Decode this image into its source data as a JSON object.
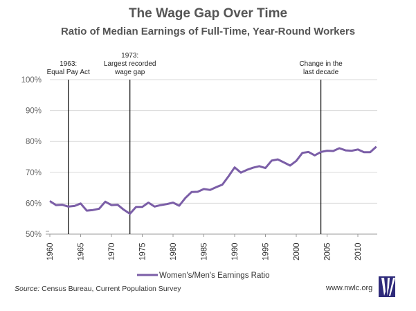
{
  "chart_data": {
    "type": "line",
    "title": "The Wage Gap Over Time",
    "subtitle": "Ratio of Median Earnings of Full-Time, Year-Round Workers",
    "xlabel": "",
    "ylabel": "",
    "xlim": [
      1960,
      2013
    ],
    "ylim": [
      50,
      100
    ],
    "grid": true,
    "y_ticks": [
      "50%",
      "60%",
      "70%",
      "80%",
      "90%",
      "100%"
    ],
    "y_tick_values": [
      50,
      60,
      70,
      80,
      90,
      100
    ],
    "x_ticks": [
      "1960",
      "1965",
      "1970",
      "1975",
      "1980",
      "1985",
      "1990",
      "1995",
      "2000",
      "2005",
      "2010"
    ],
    "x_tick_values": [
      1960,
      1965,
      1970,
      1975,
      1980,
      1985,
      1990,
      1995,
      2000,
      2005,
      2010
    ],
    "legend_placement": "bottom",
    "series": [
      {
        "name": "Women's/Men's Earnings Ratio",
        "color": "#7b5ea7",
        "x": [
          1960,
          1961,
          1962,
          1963,
          1964,
          1965,
          1966,
          1967,
          1968,
          1969,
          1970,
          1971,
          1972,
          1973,
          1974,
          1975,
          1976,
          1977,
          1978,
          1979,
          1980,
          1981,
          1982,
          1983,
          1984,
          1985,
          1986,
          1987,
          1988,
          1989,
          1990,
          1991,
          1992,
          1993,
          1994,
          1995,
          1996,
          1997,
          1998,
          1999,
          2000,
          2001,
          2002,
          2003,
          2004,
          2005,
          2006,
          2007,
          2008,
          2009,
          2010,
          2011,
          2012,
          2013
        ],
        "values": [
          60.7,
          59.4,
          59.5,
          58.9,
          59.1,
          59.9,
          57.6,
          57.8,
          58.2,
          60.5,
          59.4,
          59.5,
          57.9,
          56.6,
          58.8,
          58.8,
          60.2,
          58.9,
          59.4,
          59.7,
          60.2,
          59.2,
          61.7,
          63.6,
          63.7,
          64.6,
          64.3,
          65.2,
          66.0,
          68.7,
          71.6,
          69.9,
          70.8,
          71.5,
          72.0,
          71.4,
          73.8,
          74.2,
          73.2,
          72.2,
          73.7,
          76.3,
          76.6,
          75.5,
          76.6,
          77.0,
          76.9,
          77.8,
          77.1,
          77.0,
          77.4,
          76.5,
          76.5,
          78.3
        ]
      }
    ],
    "annotations": [
      {
        "year": 1963,
        "lines": [
          "1963:",
          "Equal Pay Act"
        ]
      },
      {
        "year": 1973,
        "lines": [
          "1973:",
          "Largest recorded",
          "wage gap"
        ]
      },
      {
        "year": 2004,
        "lines": [
          "Change in the",
          "last decade"
        ]
      }
    ]
  },
  "footer": {
    "source_label": "Source:",
    "source_text": " Census Bureau, Current Population Survey",
    "url": "www.nwlc.org",
    "logo_icon": "nwlc-logo-icon",
    "logo_color": "#2e2a7a"
  }
}
